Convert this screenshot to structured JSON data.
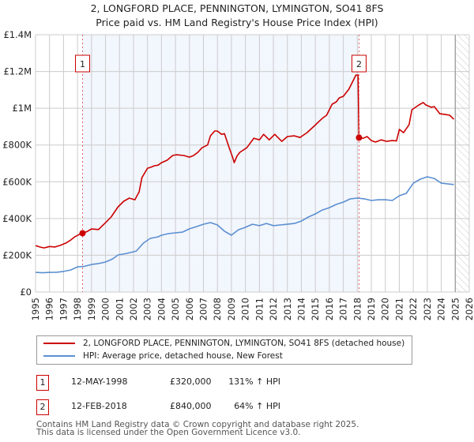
{
  "title": "2, LONGFORD PLACE, PENNINGTON, LYMINGTON, SO41 8FS",
  "subtitle": "Price paid vs. HM Land Registry's House Price Index (HPI)",
  "legend": {
    "items": [
      {
        "label": "2, LONGFORD PLACE, PENNINGTON, LYMINGTON, SO41 8FS (detached house)",
        "color": "#cc0000"
      },
      {
        "label": "HPI: Average price, detached house, New Forest",
        "color": "#5b8fd1"
      }
    ]
  },
  "transactions": [
    {
      "num": "1",
      "date": "12-MAY-1998",
      "price": "£320,000",
      "hpi": "131% ↑ HPI"
    },
    {
      "num": "2",
      "date": "12-FEB-2018",
      "price": "£840,000",
      "hpi": "64% ↑ HPI"
    }
  ],
  "footer": {
    "line1": "Contains HM Land Registry data © Crown copyright and database right 2025.",
    "line2": "This data is licensed under the Open Government Licence v3.0."
  },
  "chart_data": {
    "type": "line",
    "title": "2, LONGFORD PLACE, PENNINGTON, LYMINGTON, SO41 8FS",
    "subtitle": "Price paid vs. HM Land Registry's House Price Index (HPI)",
    "xlabel": "",
    "ylabel": "",
    "xlim": [
      1995,
      2026
    ],
    "ylim": [
      0,
      1400000
    ],
    "grid": true,
    "legend_position": "bottom",
    "x_ticks": [
      "1995",
      "1996",
      "1997",
      "1998",
      "1999",
      "2000",
      "2001",
      "2002",
      "2003",
      "2004",
      "2005",
      "2006",
      "2007",
      "2008",
      "2009",
      "2010",
      "2011",
      "2012",
      "2013",
      "2014",
      "2015",
      "2016",
      "2017",
      "2018",
      "2019",
      "2020",
      "2021",
      "2022",
      "2023",
      "2024",
      "2025",
      "2026"
    ],
    "y_ticks": [
      {
        "value": 0,
        "label": "£0"
      },
      {
        "value": 200000,
        "label": "£200K"
      },
      {
        "value": 400000,
        "label": "£400K"
      },
      {
        "value": 600000,
        "label": "£600K"
      },
      {
        "value": 800000,
        "label": "£800K"
      },
      {
        "value": 1000000,
        "label": "£1M"
      },
      {
        "value": 1200000,
        "label": "£1.2M"
      },
      {
        "value": 1400000,
        "label": "£1.4M"
      }
    ],
    "shaded_period": [
      1998.36,
      2018.12
    ],
    "forecast_hatch_from": 2025.0,
    "series": [
      {
        "name": "2, LONGFORD PLACE, PENNINGTON, LYMINGTON, SO41 8FS (detached house)",
        "color": "#cc0000",
        "x": [
          1995.0,
          1995.3,
          1995.6,
          1996.0,
          1996.4,
          1996.8,
          1997.2,
          1997.5,
          1997.8,
          1998.1,
          1998.36,
          1998.7,
          1999.0,
          1999.5,
          2000.0,
          2000.4,
          2000.9,
          2001.3,
          2001.7,
          2002.1,
          2002.4,
          2002.6,
          2003.0,
          2003.2,
          2003.5,
          2003.75,
          2004.0,
          2004.4,
          2004.8,
          2005.05,
          2005.6,
          2006.0,
          2006.3,
          2006.6,
          2006.9,
          2007.3,
          2007.5,
          2007.8,
          2008.0,
          2008.3,
          2008.5,
          2008.8,
          2009.1,
          2009.2,
          2009.4,
          2009.6,
          2010.1,
          2010.6,
          2011.0,
          2011.3,
          2011.7,
          2012.1,
          2012.6,
          2013.0,
          2013.5,
          2013.9,
          2014.4,
          2014.9,
          2015.5,
          2015.8,
          2016.2,
          2016.5,
          2016.7,
          2017.0,
          2017.4,
          2017.9,
          2018.05,
          2018.12,
          2018.4,
          2018.7,
          2019.0,
          2019.3,
          2019.7,
          2020.1,
          2020.5,
          2020.8,
          2021.0,
          2021.3,
          2021.7,
          2021.9,
          2022.4,
          2022.7,
          2022.9,
          2023.3,
          2023.5,
          2023.9,
          2024.3,
          2024.6,
          2024.9
        ],
        "values": [
          253000,
          245000,
          240000,
          248000,
          245000,
          255000,
          268000,
          282000,
          300000,
          312000,
          320000,
          330000,
          343000,
          340000,
          377000,
          408000,
          464000,
          494000,
          511000,
          502000,
          545000,
          622000,
          674000,
          678000,
          687000,
          690000,
          704000,
          717000,
          743000,
          747000,
          743000,
          734000,
          743000,
          760000,
          785000,
          800000,
          850000,
          876000,
          876000,
          858000,
          862000,
          794000,
          730000,
          704000,
          740000,
          760000,
          785000,
          837000,
          828000,
          858000,
          828000,
          858000,
          820000,
          846000,
          850000,
          841000,
          867000,
          902000,
          945000,
          962000,
          1022000,
          1035000,
          1056000,
          1065000,
          1104000,
          1181000,
          1180000,
          840000,
          836000,
          846000,
          824000,
          816000,
          828000,
          820000,
          824000,
          822000,
          885000,
          867000,
          910000,
          992000,
          1018000,
          1031000,
          1018000,
          1005000,
          1009000,
          970000,
          966000,
          962000,
          940000
        ]
      },
      {
        "name": "HPI: Average price, detached house, New Forest",
        "color": "#5b8fd1",
        "x": [
          1995.0,
          1995.5,
          1996.0,
          1996.5,
          1997.0,
          1997.5,
          1998.0,
          1998.5,
          1999.0,
          1999.5,
          2000.0,
          2000.5,
          2000.9,
          2001.5,
          2002.2,
          2002.7,
          2003.2,
          2003.75,
          2004.0,
          2004.5,
          2005.0,
          2005.5,
          2006.0,
          2006.5,
          2007.0,
          2007.5,
          2008.0,
          2008.5,
          2009.0,
          2009.5,
          2010.0,
          2010.5,
          2011.0,
          2011.5,
          2012.0,
          2012.5,
          2013.0,
          2013.5,
          2014.0,
          2014.5,
          2015.0,
          2015.5,
          2016.0,
          2016.5,
          2017.0,
          2017.5,
          2018.0,
          2018.5,
          2019.0,
          2019.5,
          2020.0,
          2020.5,
          2021.0,
          2021.5,
          2022.0,
          2022.5,
          2023.0,
          2023.5,
          2024.0,
          2024.5,
          2024.9
        ],
        "values": [
          107000,
          105000,
          107000,
          108000,
          112000,
          120000,
          137000,
          140000,
          150000,
          155000,
          163000,
          180000,
          202000,
          210000,
          223000,
          266000,
          292000,
          300000,
          309000,
          318000,
          322000,
          326000,
          344000,
          356000,
          369000,
          378000,
          365000,
          331000,
          309000,
          339000,
          352000,
          369000,
          361000,
          373000,
          361000,
          365000,
          369000,
          373000,
          386000,
          408000,
          425000,
          446000,
          459000,
          477000,
          489000,
          507000,
          511000,
          507000,
          498000,
          502000,
          502000,
          498000,
          524000,
          537000,
          592000,
          614000,
          627000,
          618000,
          592000,
          588000,
          585000
        ]
      }
    ],
    "annotations": [
      {
        "label": "1",
        "x": 1998.36,
        "value": 320000,
        "date": "12-MAY-1998"
      },
      {
        "label": "2",
        "x": 2018.12,
        "value": 840000,
        "date": "12-FEB-2018"
      }
    ]
  }
}
